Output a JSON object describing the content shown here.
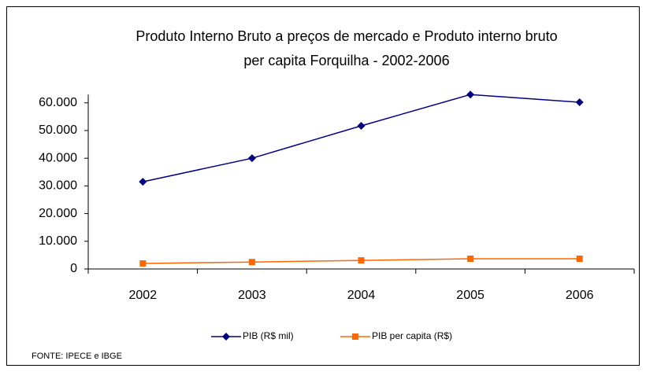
{
  "chart_data": {
    "type": "line",
    "title": [
      "Produto Interno Bruto a preços de mercado  e   Produto interno bruto",
      "per capita Forquilha - 2002-2006"
    ],
    "categories": [
      "2002",
      "2003",
      "2004",
      "2005",
      "2006"
    ],
    "series": [
      {
        "name": "PIB (R$ mil)",
        "color": "#000080",
        "marker": "diamond",
        "values": [
          31500,
          40000,
          51700,
          63000,
          60200
        ]
      },
      {
        "name": "PIB per capita (R$)",
        "color": "#ff6600",
        "marker": "square",
        "values": [
          2000,
          2500,
          3100,
          3700,
          3700
        ]
      }
    ],
    "ylim": [
      0,
      63000
    ],
    "yticks": [
      0,
      {
        "value": 10000,
        "label": "10.000"
      },
      {
        "value": 20000,
        "label": "20.000"
      },
      {
        "value": 30000,
        "label": "30.000"
      },
      {
        "value": 40000,
        "label": "40.000"
      },
      {
        "value": 50000,
        "label": "50.000"
      },
      {
        "value": 60000,
        "label": "60.000"
      }
    ],
    "grid": false,
    "legend": "bottom",
    "source": "FONTE: IPECE e IBGE"
  }
}
